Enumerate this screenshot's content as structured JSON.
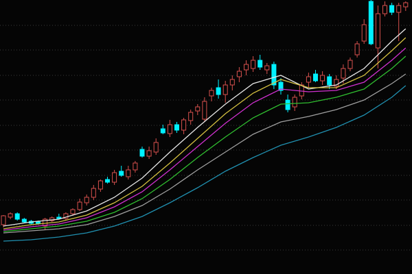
{
  "chart_data": {
    "type": "candlestick",
    "ylim": [
      0,
      400
    ],
    "yticks": [
      35,
      71,
      108,
      144,
      181,
      217,
      254,
      290,
      327,
      363
    ],
    "grid": true,
    "up_color": "#d9514e",
    "down_color": "#00f0ff",
    "candles": {
      "open": [
        72,
        83,
        88,
        80,
        77,
        76,
        70,
        78,
        83,
        81,
        88,
        94,
        104,
        112,
        124,
        138,
        134,
        150,
        142,
        152,
        182,
        172,
        178,
        212,
        205,
        218,
        210,
        224,
        238,
        226,
        260,
        272,
        262,
        276,
        288,
        298,
        300,
        312,
        298,
        306,
        280,
        254,
        244,
        260,
        280,
        292,
        282,
        288,
        274,
        286,
        300,
        320,
        340,
        398,
        330,
        380,
        392,
        382,
        390
      ],
      "high": [
        86,
        90,
        90,
        82,
        79,
        78,
        82,
        84,
        88,
        90,
        96,
        110,
        116,
        130,
        138,
        142,
        152,
        158,
        158,
        165,
        186,
        186,
        198,
        218,
        225,
        222,
        228,
        240,
        248,
        258,
        272,
        284,
        282,
        290,
        302,
        312,
        318,
        320,
        308,
        310,
        286,
        262,
        262,
        280,
        294,
        298,
        296,
        292,
        290,
        306,
        316,
        340,
        372,
        400,
        392,
        398,
        396,
        396,
        398
      ],
      "low": [
        68,
        80,
        78,
        74,
        72,
        72,
        64,
        76,
        80,
        78,
        85,
        92,
        100,
        108,
        120,
        132,
        130,
        142,
        138,
        148,
        170,
        168,
        174,
        204,
        200,
        206,
        204,
        218,
        232,
        222,
        252,
        256,
        250,
        268,
        280,
        290,
        295,
        298,
        292,
        270,
        262,
        236,
        238,
        255,
        272,
        280,
        276,
        270,
        270,
        278,
        296,
        316,
        336,
        334,
        300,
        376,
        378,
        340,
        384
      ],
      "close": [
        85,
        88,
        80,
        76,
        74,
        74,
        80,
        82,
        81,
        88,
        94,
        105,
        112,
        125,
        136,
        134,
        148,
        144,
        152,
        162,
        172,
        180,
        192,
        206,
        218,
        210,
        225,
        236,
        244,
        252,
        268,
        262,
        276,
        284,
        296,
        306,
        312,
        302,
        304,
        276,
        268,
        240,
        258,
        276,
        288,
        282,
        290,
        276,
        284,
        300,
        312,
        336,
        364,
        336,
        380,
        392,
        382,
        392,
        396
      ]
    },
    "lines": [
      {
        "color": "#e8e8e8",
        "x": [
          0,
          4,
          8,
          12,
          16,
          20,
          24,
          28,
          32,
          36,
          40,
          44,
          48,
          52,
          56,
          58
        ],
        "values": [
          70,
          76,
          80,
          92,
          112,
          140,
          178,
          214,
          248,
          278,
          290,
          270,
          276,
          300,
          340,
          358
        ]
      },
      {
        "color": "#d4c040",
        "x": [
          0,
          4,
          8,
          12,
          16,
          20,
          24,
          28,
          32,
          36,
          40,
          44,
          48,
          52,
          56,
          58
        ],
        "values": [
          66,
          72,
          76,
          86,
          104,
          128,
          162,
          198,
          234,
          264,
          284,
          272,
          272,
          290,
          326,
          345
        ]
      },
      {
        "color": "#d030d0",
        "x": [
          0,
          4,
          8,
          12,
          16,
          20,
          24,
          28,
          32,
          36,
          40,
          44,
          48,
          52,
          56,
          58
        ],
        "values": [
          64,
          69,
          73,
          82,
          98,
          120,
          152,
          186,
          220,
          250,
          270,
          266,
          268,
          280,
          312,
          330
        ]
      },
      {
        "color": "#30c030",
        "x": [
          0,
          4,
          8,
          12,
          16,
          20,
          24,
          28,
          32,
          36,
          40,
          44,
          48,
          52,
          56,
          58
        ],
        "values": [
          62,
          66,
          70,
          77,
          90,
          110,
          138,
          170,
          200,
          228,
          248,
          250,
          258,
          270,
          300,
          318
        ]
      },
      {
        "color": "#a0a0a0",
        "x": [
          0,
          4,
          8,
          12,
          16,
          20,
          24,
          28,
          32,
          36,
          40,
          44,
          48,
          52,
          56,
          58
        ],
        "values": [
          60,
          63,
          66,
          72,
          84,
          100,
          124,
          152,
          178,
          204,
          222,
          230,
          240,
          254,
          278,
          292
        ]
      },
      {
        "color": "#2090b0",
        "x": [
          0,
          4,
          8,
          12,
          16,
          20,
          24,
          28,
          32,
          36,
          40,
          44,
          48,
          52,
          56,
          58
        ],
        "values": [
          48,
          50,
          54,
          60,
          70,
          84,
          104,
          126,
          150,
          170,
          188,
          200,
          214,
          232,
          258,
          275
        ]
      }
    ]
  }
}
